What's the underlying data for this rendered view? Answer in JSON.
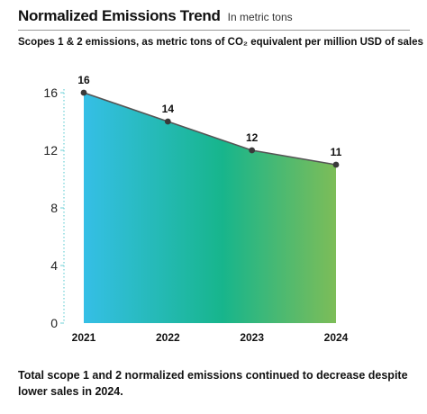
{
  "header": {
    "title": "Normalized Emissions Trend",
    "unit": "In metric tons",
    "subtitle": "Scopes 1 & 2 emissions, as metric tons of CO₂ equivalent per million USD of sales"
  },
  "caption": "Total scope 1 and 2 normalized emissions continued to decrease despite lower sales in 2024.",
  "chart_data": {
    "type": "area",
    "title": "Normalized Emissions Trend",
    "subtitle": "Scopes 1 & 2 emissions, as metric tons of CO₂ equivalent per million USD of sales",
    "categories": [
      "2021",
      "2022",
      "2023",
      "2024"
    ],
    "series": [
      {
        "values": [
          16,
          14,
          12,
          11
        ]
      }
    ],
    "data_labels": [
      "16",
      "14",
      "12",
      "11"
    ],
    "ylim": [
      0,
      16
    ],
    "yticks": [
      0,
      4,
      8,
      12,
      16
    ],
    "grid": false,
    "legend": "none",
    "colors": {
      "gradient_start": "#35bfe6",
      "gradient_mid": "#17b58c",
      "gradient_end": "#7dbd58",
      "line": "#555555",
      "marker": "#3a3a3a",
      "axis": "#6fd1d7"
    }
  }
}
